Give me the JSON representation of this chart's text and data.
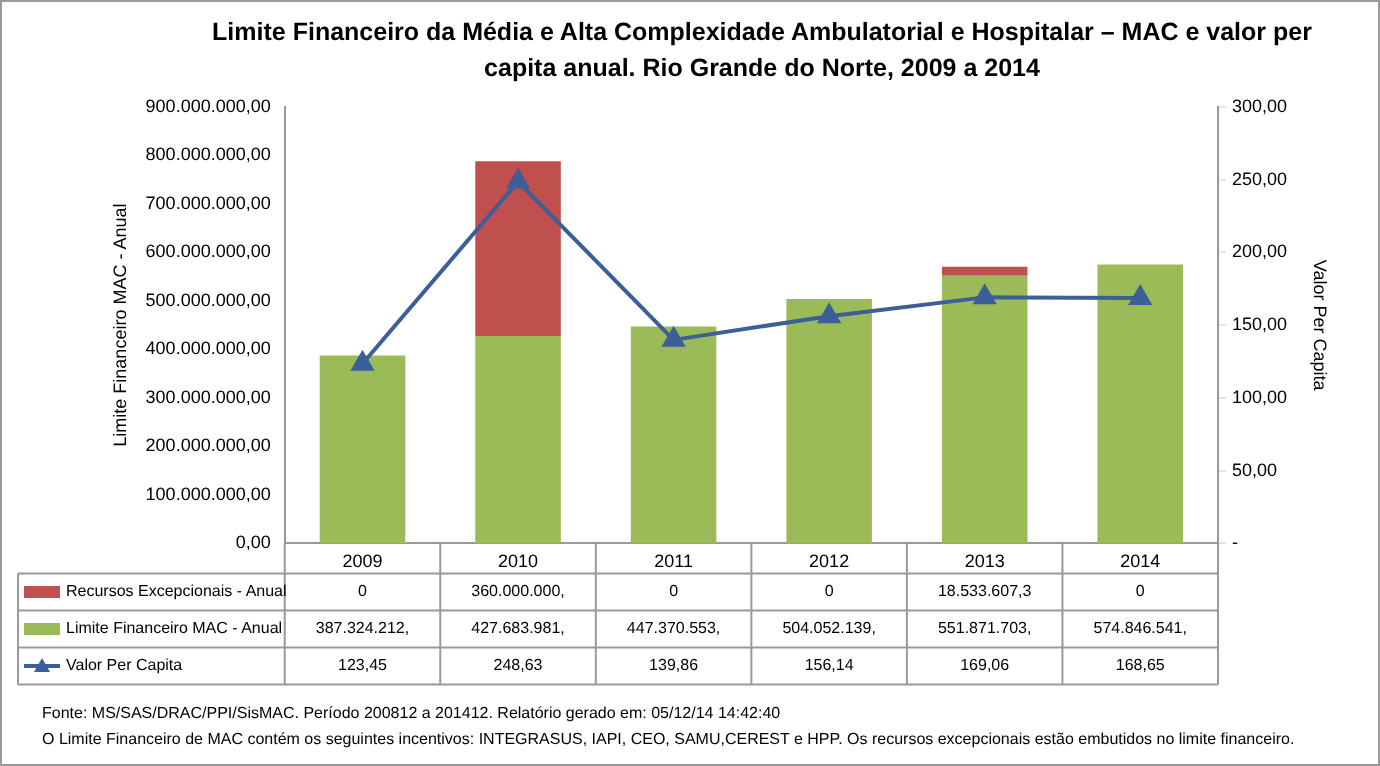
{
  "chart_data": {
    "type": "bar",
    "title": "Limite Financeiro da Média e Alta Complexidade Ambulatorial e Hospitalar – MAC e valor per capita anual. Rio Grande do Norte, 2009 a 2014",
    "ylabel": "Limite Financeiro MAC - Anual",
    "y2label": "Valor Per Capita",
    "categories": [
      "2009",
      "2010",
      "2011",
      "2012",
      "2013",
      "2014"
    ],
    "stacked": true,
    "legend": "bottom",
    "grid": false,
    "ylim": [
      0,
      900000000
    ],
    "yticks": [
      {
        "value": 0,
        "label": "0,00"
      },
      {
        "value": 100000000,
        "label": "100.000.000,00"
      },
      {
        "value": 200000000,
        "label": "200.000.000,00"
      },
      {
        "value": 300000000,
        "label": "300.000.000,00"
      },
      {
        "value": 400000000,
        "label": "400.000.000,00"
      },
      {
        "value": 500000000,
        "label": "500.000.000,00"
      },
      {
        "value": 600000000,
        "label": "600.000.000,00"
      },
      {
        "value": 700000000,
        "label": "700.000.000,00"
      },
      {
        "value": 800000000,
        "label": "800.000.000,00"
      },
      {
        "value": 900000000,
        "label": "900.000.000,00"
      }
    ],
    "y2lim": [
      0,
      300
    ],
    "y2ticks": [
      {
        "value": 0,
        "label": "-"
      },
      {
        "value": 50,
        "label": "50,00"
      },
      {
        "value": 100,
        "label": "100,00"
      },
      {
        "value": 150,
        "label": "150,00"
      },
      {
        "value": 200,
        "label": "200,00"
      },
      {
        "value": 250,
        "label": "250,00"
      },
      {
        "value": 300,
        "label": "300,00"
      }
    ],
    "series": [
      {
        "name": "Limite Financeiro MAC - Anual",
        "color": "#9bbb59",
        "values": [
          387324212,
          427683981,
          447370553,
          504052139,
          551871703,
          574846541
        ],
        "value_labels": [
          "387.324.212,",
          "427.683.981,",
          "447.370.553,",
          "504.052.139,",
          "551.871.703,",
          "574.846.541,"
        ]
      },
      {
        "name": "Recursos Excepcionais - Anual",
        "color": "#c0504d",
        "values": [
          0,
          360000000,
          0,
          0,
          18533607.3,
          0
        ],
        "value_labels": [
          "0",
          "360.000.000,",
          "0",
          "0",
          "18.533.607,3",
          "0"
        ]
      },
      {
        "name": "Valor Per Capita",
        "type": "line",
        "axis": "y2",
        "color": "#3c5f99",
        "marker": "triangle",
        "line_style": "solid",
        "values": [
          123.45,
          248.63,
          139.86,
          156.14,
          169.06,
          168.65
        ],
        "value_labels": [
          "123,45",
          "248,63",
          "139,86",
          "156,14",
          "169,06",
          "168,65"
        ]
      }
    ],
    "annotations": [
      "Fonte: MS/SAS/DRAC/PPI/SisMAC. Período 200812 a 201412. Relatório gerado em: 05/12/14 14:42:40",
      "O Limite Financeiro de MAC contém os seguintes incentivos: INTEGRASUS, IAPI, CEO, SAMU,CEREST e HPP. Os recursos excepcionais estão embutidos no limite financeiro."
    ]
  }
}
